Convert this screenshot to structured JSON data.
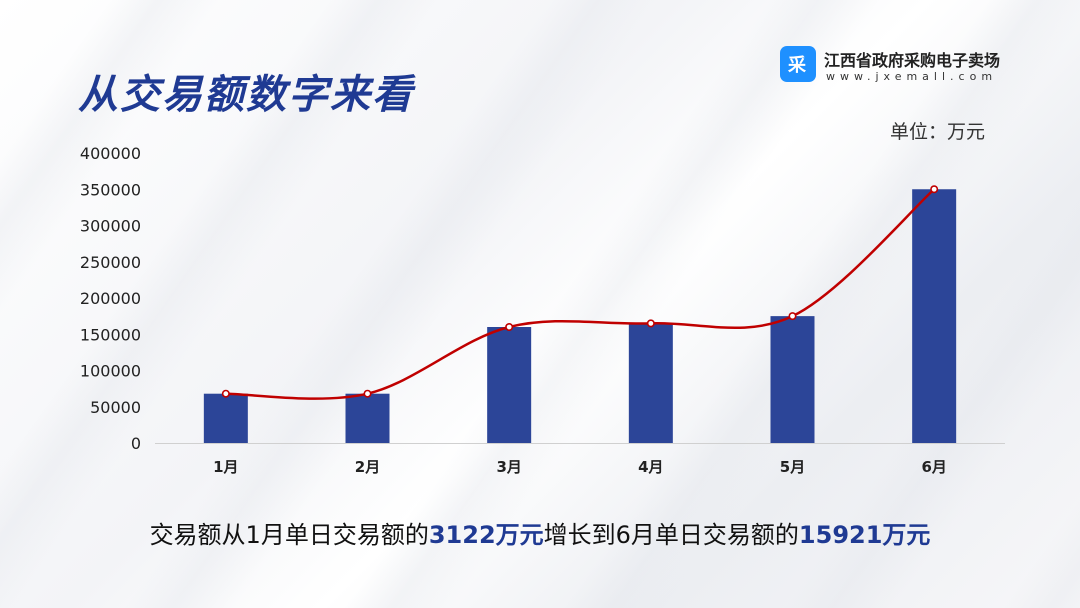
{
  "header": {
    "title": "从交易额数字来看",
    "brand_logo_glyph": "采",
    "brand_name": "江西省政府采购电子卖场",
    "brand_url": "www.jxemall.com"
  },
  "unit_label": "单位：万元",
  "caption": {
    "part1": "交易额从1月单日交易额的",
    "value1": "3122万元",
    "part2": "增长到6月单日交易额的",
    "value2": "15921万元"
  },
  "colors": {
    "title": "#1f3a93",
    "bar": "#2c4598",
    "line": "#c00000",
    "axis": "#d0d0d0",
    "brand_logo": "#1e90ff"
  },
  "chart_data": {
    "type": "bar",
    "categories": [
      "1月",
      "2月",
      "3月",
      "4月",
      "5月",
      "6月"
    ],
    "series": [
      {
        "values": [
          68000,
          68000,
          160000,
          165000,
          175000,
          350000
        ]
      }
    ],
    "line_values": [
      68000,
      68000,
      160000,
      165000,
      175000,
      350000
    ],
    "ylim": [
      0,
      400000
    ],
    "yticks": [
      0,
      50000,
      100000,
      150000,
      200000,
      250000,
      300000,
      350000,
      400000
    ],
    "grid": false,
    "legend": "none"
  }
}
